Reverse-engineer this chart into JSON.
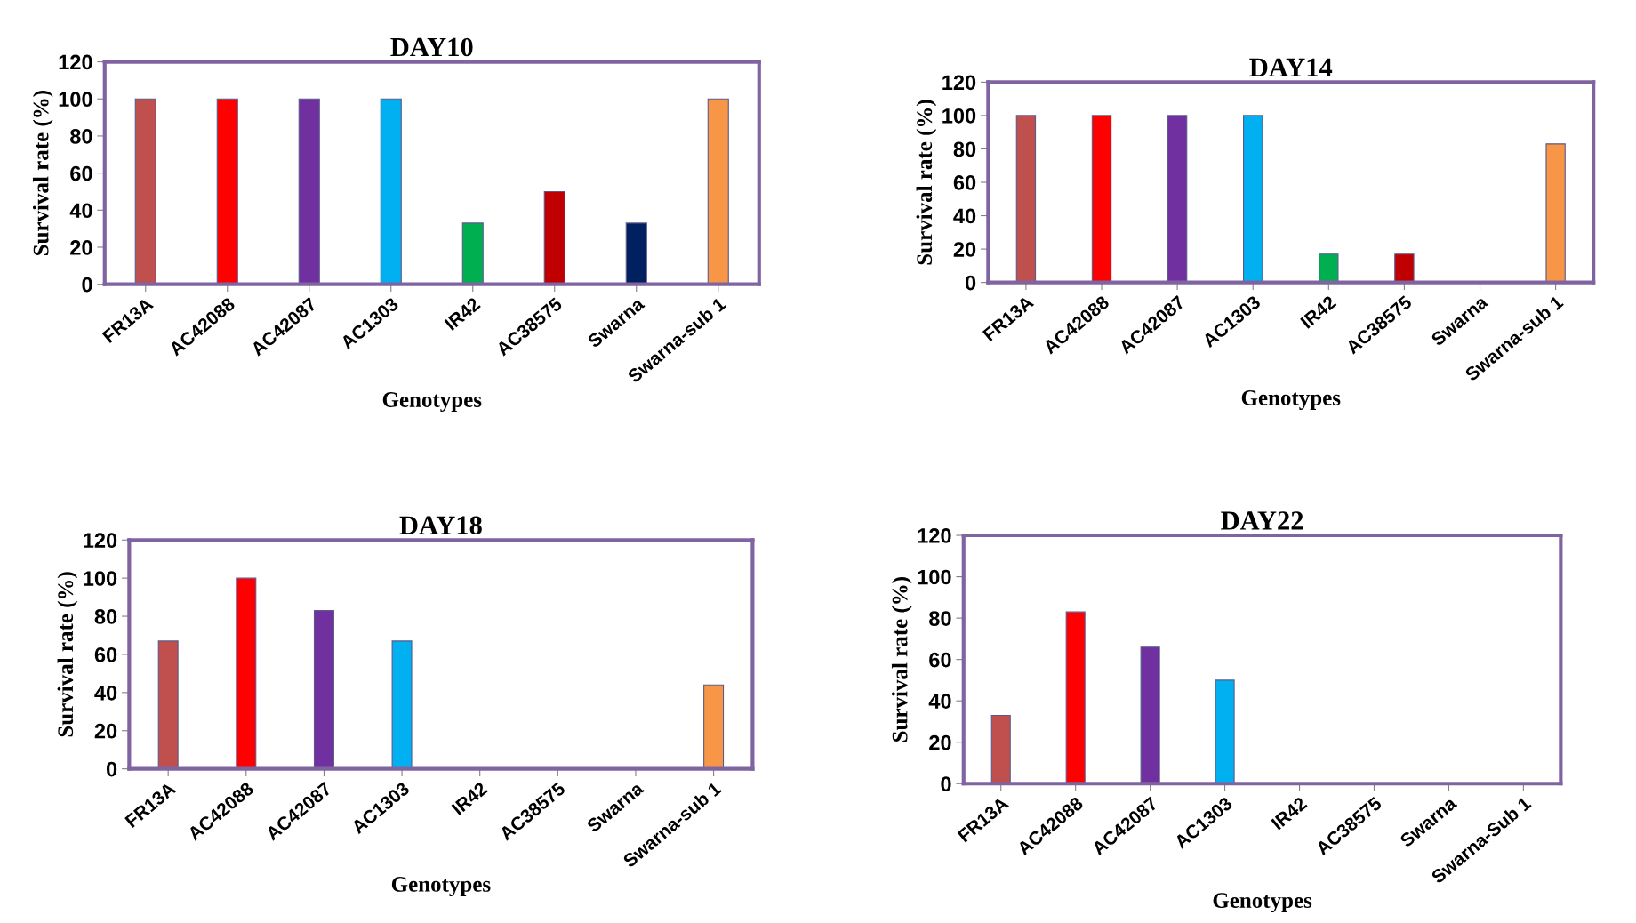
{
  "chart_data": [
    {
      "type": "bar",
      "title": "DAY10",
      "xlabel": "Genotypes",
      "ylabel": "Survival rate (%)",
      "categories": [
        "FR13A",
        "AC42088",
        "AC42087",
        "AC1303",
        "IR42",
        "AC38575",
        "Swarna",
        "Swarna-sub 1"
      ],
      "values": [
        100,
        100,
        100,
        100,
        33,
        50,
        33,
        100
      ],
      "colors": [
        "#c0504d",
        "#ff0000",
        "#7030a0",
        "#00b0f0",
        "#00b050",
        "#c00000",
        "#002060",
        "#f79646"
      ],
      "ylim": [
        0,
        120
      ],
      "yticks": [
        0,
        20,
        40,
        60,
        80,
        100,
        120
      ],
      "grid": false
    },
    {
      "type": "bar",
      "title": "DAY14",
      "xlabel": "Genotypes",
      "ylabel": "Survival rate (%)",
      "categories": [
        "FR13A",
        "AC42088",
        "AC42087",
        "AC1303",
        "IR42",
        "AC38575",
        "Swarna",
        "Swarna-sub 1"
      ],
      "values": [
        100,
        100,
        100,
        100,
        17,
        17,
        0,
        83
      ],
      "colors": [
        "#c0504d",
        "#ff0000",
        "#7030a0",
        "#00b0f0",
        "#00b050",
        "#c00000",
        "#002060",
        "#f79646"
      ],
      "ylim": [
        0,
        120
      ],
      "yticks": [
        0,
        20,
        40,
        60,
        80,
        100,
        120
      ],
      "grid": false
    },
    {
      "type": "bar",
      "title": "DAY18",
      "xlabel": "Genotypes",
      "ylabel": "Survival rate (%)",
      "categories": [
        "FR13A",
        "AC42088",
        "AC42087",
        "AC1303",
        "IR42",
        "AC38575",
        "Swarna",
        "Swarna-sub 1"
      ],
      "values": [
        67,
        100,
        83,
        67,
        0,
        0,
        0,
        44
      ],
      "colors": [
        "#c0504d",
        "#ff0000",
        "#7030a0",
        "#00b0f0",
        "#00b050",
        "#c00000",
        "#002060",
        "#f79646"
      ],
      "ylim": [
        0,
        120
      ],
      "yticks": [
        0,
        20,
        40,
        60,
        80,
        100,
        120
      ],
      "grid": false
    },
    {
      "type": "bar",
      "title": "DAY22",
      "xlabel": "Genotypes",
      "ylabel": "Survival rate (%)",
      "categories": [
        "FR13A",
        "AC42088",
        "AC42087",
        "AC1303",
        "IR42",
        "AC38575",
        "Swarna",
        "Swarna-Sub 1"
      ],
      "values": [
        33,
        83,
        66,
        50,
        0,
        0,
        0,
        0
      ],
      "colors": [
        "#c0504d",
        "#ff0000",
        "#7030a0",
        "#00b0f0",
        "#00b050",
        "#c00000",
        "#002060",
        "#f79646"
      ],
      "ylim": [
        0,
        120
      ],
      "yticks": [
        0,
        20,
        40,
        60,
        80,
        100,
        120
      ],
      "grid": false
    }
  ]
}
